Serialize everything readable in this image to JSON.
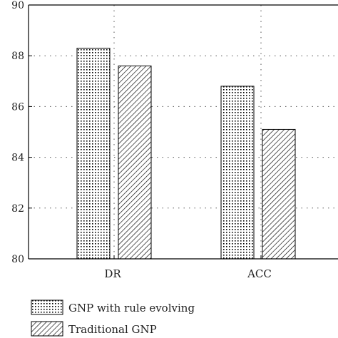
{
  "chart_data": {
    "type": "bar",
    "categories": [
      "DR",
      "ACC"
    ],
    "series": [
      {
        "name": "GNP with rule evolving",
        "values": [
          88.3,
          86.8
        ],
        "pattern": "dots"
      },
      {
        "name": "Traditional GNP",
        "values": [
          87.6,
          85.1
        ],
        "pattern": "hatch"
      }
    ],
    "ylim": [
      80,
      90
    ],
    "yticks": [
      80,
      82,
      84,
      86,
      88,
      90
    ],
    "grid": true,
    "legend_position": "bottom-left",
    "colors": {
      "axis": "#000000",
      "grid": "#555555",
      "bar_stroke": "#000000",
      "fill": "#ffffff"
    }
  }
}
